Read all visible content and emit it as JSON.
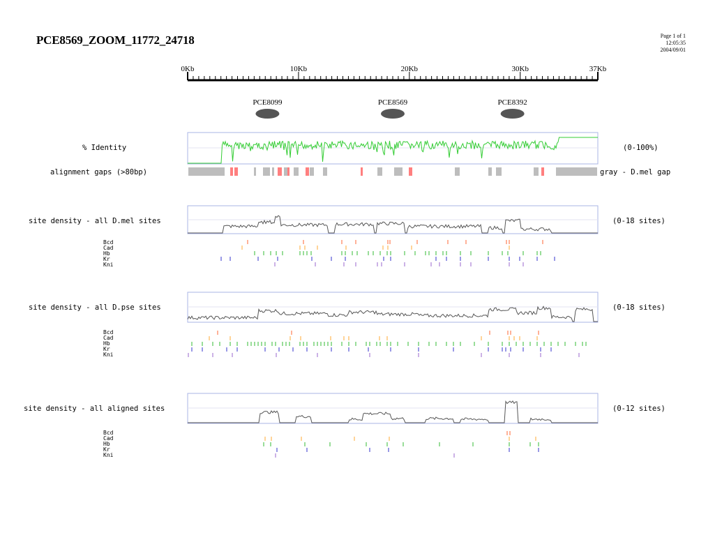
{
  "title": "PCE8569_ZOOM_11772_24718",
  "meta": {
    "page": "Page 1 of 1",
    "time": "12:05:35",
    "date": "2004/09/01"
  },
  "scale": {
    "ticks": [
      "0Kb",
      "10Kb",
      "20Kb",
      "30Kb",
      "37Kb"
    ],
    "tick_values_kb": [
      0,
      10,
      20,
      30,
      37
    ],
    "max_kb": 37
  },
  "elements": [
    {
      "name": "PCE8099",
      "center_kb": 7.2
    },
    {
      "name": "PCE8569",
      "center_kb": 18.5
    },
    {
      "name": "PCE8392",
      "center_kb": 29.3
    }
  ],
  "tracks": {
    "identity": {
      "label": "% Identity",
      "range": "(0-100%)",
      "color": "#33cc33"
    },
    "gaps": {
      "label": "alignment gaps (>80bp)",
      "legend": "gray - D.mel gap",
      "gray": "#bdbdbd",
      "red": "#ff7f7f"
    },
    "mel": {
      "label": "site density - all D.mel sites",
      "range": "(0-18 sites)"
    },
    "pse": {
      "label": "site density - all D.pse sites",
      "range": "(0-18 sites)"
    },
    "aligned": {
      "label": "site density - all aligned sites",
      "range": "(0-12 sites)"
    }
  },
  "factors": [
    {
      "name": "Bcd",
      "color": "#ff6633"
    },
    {
      "name": "Cad",
      "color": "#ffaa33"
    },
    {
      "name": "Hb",
      "color": "#33bb33"
    },
    {
      "name": "Kr",
      "color": "#3333cc"
    },
    {
      "name": "Kni",
      "color": "#9966cc"
    }
  ]
}
